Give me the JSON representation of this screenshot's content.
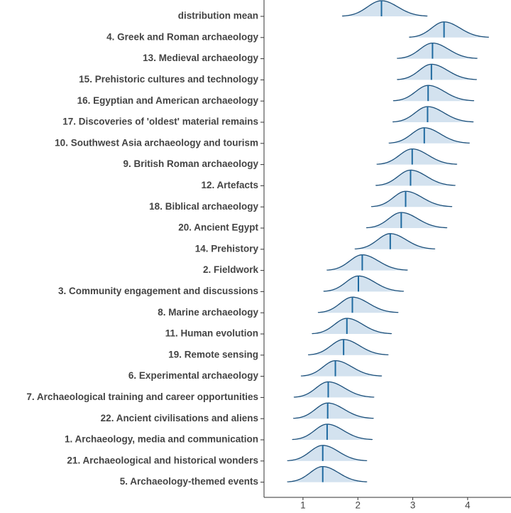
{
  "chart_data": {
    "type": "ridgeline",
    "categories": [
      "distribution mean",
      "4. Greek and Roman archaeology",
      "13. Medieval archaeology",
      "15. Prehistoric cultures and technology",
      "16. Egyptian and American archaeology",
      "17. Discoveries of 'oldest' material remains",
      "10. Southwest Asia archaeology and tourism",
      "9. British Roman archaeology",
      "12. Artefacts",
      "18. Biblical archaeology",
      "20. Ancient Egypt",
      "14. Prehistory",
      "2. Fieldwork",
      "3. Community engagement and discussions",
      "8. Marine archaeology",
      "11. Human evolution",
      "19. Remote sensing",
      "6. Experimental archaeology",
      "7. Archaeological training and career opportunities",
      "22. Ancient civilisations and aliens",
      "1. Archaeology, media and communication",
      "21. Archaeological and historical wonders",
      "5. Archaeology-themed events"
    ],
    "values": [
      2.43,
      3.57,
      3.36,
      3.34,
      3.28,
      3.27,
      3.21,
      2.99,
      2.96,
      2.87,
      2.79,
      2.59,
      2.08,
      2.01,
      1.9,
      1.8,
      1.74,
      1.59,
      1.46,
      1.45,
      1.44,
      1.36,
      1.36
    ],
    "low": [
      1.72,
      2.94,
      2.72,
      2.72,
      2.65,
      2.64,
      2.57,
      2.35,
      2.33,
      2.25,
      2.16,
      1.95,
      1.44,
      1.38,
      1.28,
      1.17,
      1.1,
      0.97,
      0.84,
      0.83,
      0.81,
      0.72,
      0.72
    ],
    "high": [
      3.26,
      4.38,
      4.17,
      4.16,
      4.11,
      4.1,
      4.03,
      3.8,
      3.77,
      3.71,
      3.62,
      3.4,
      2.9,
      2.83,
      2.73,
      2.61,
      2.55,
      2.43,
      2.29,
      2.28,
      2.26,
      2.16,
      2.16
    ],
    "fill_color": "#d3e2ef",
    "line_color": "#1b4f7a",
    "mean_color": "#1f6aa0",
    "xlim": [
      0.29,
      4.79
    ],
    "xticks": [
      1,
      2,
      3,
      4
    ]
  }
}
